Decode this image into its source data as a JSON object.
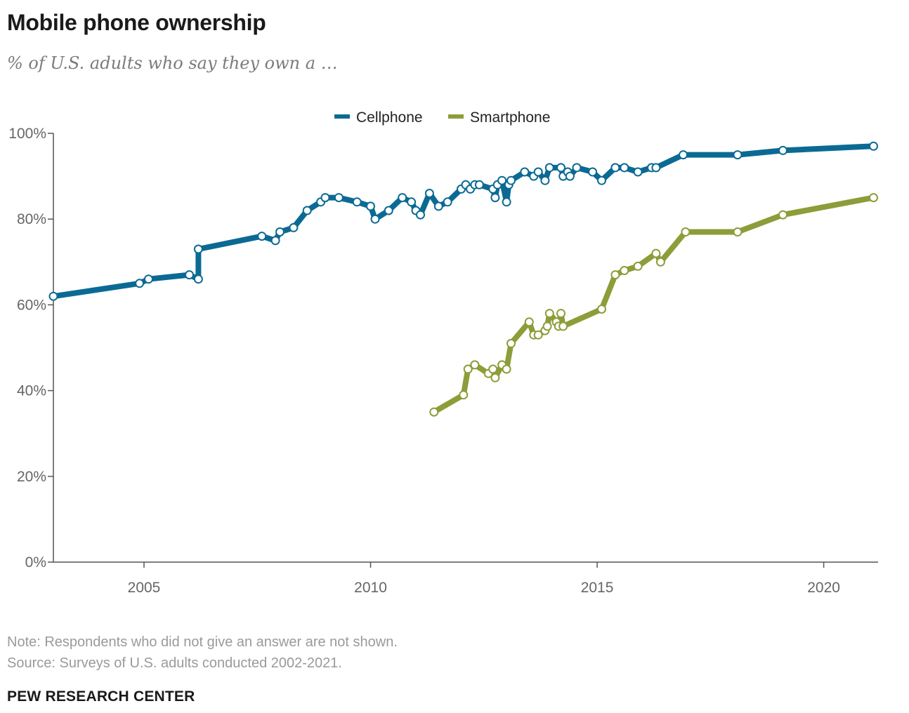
{
  "header": {
    "title": "Mobile phone ownership",
    "subtitle": "% of U.S. adults who say they own a …"
  },
  "footer": {
    "note": "Note: Respondents who did not give an answer are not shown.",
    "source": "Source: Surveys of U.S. adults conducted 2002-2021.",
    "brand": "PEW RESEARCH CENTER"
  },
  "chart_data": {
    "type": "line",
    "xlim": [
      2003.0,
      2021.2
    ],
    "ylim": [
      0,
      100
    ],
    "x_ticks": [
      2005,
      2010,
      2015,
      2020
    ],
    "x_tick_labels": [
      "2005",
      "2010",
      "2015",
      "2020"
    ],
    "y_ticks": [
      0,
      20,
      40,
      60,
      80,
      100
    ],
    "y_tick_labels": [
      "0%",
      "20%",
      "40%",
      "60%",
      "80%",
      "100%"
    ],
    "grid": false,
    "legend_position": "top-center",
    "series": [
      {
        "name": "Cellphone",
        "color": "#0b6a94",
        "points": [
          [
            2003.0,
            62
          ],
          [
            2004.9,
            65
          ],
          [
            2005.1,
            66
          ],
          [
            2006.0,
            67
          ],
          [
            2006.2,
            66
          ],
          [
            2006.2,
            73
          ],
          [
            2007.6,
            76
          ],
          [
            2007.9,
            75
          ],
          [
            2008.0,
            77
          ],
          [
            2008.3,
            78
          ],
          [
            2008.6,
            82
          ],
          [
            2008.9,
            84
          ],
          [
            2009.0,
            85
          ],
          [
            2009.3,
            85
          ],
          [
            2009.7,
            84
          ],
          [
            2010.0,
            83
          ],
          [
            2010.1,
            80
          ],
          [
            2010.4,
            82
          ],
          [
            2010.7,
            85
          ],
          [
            2010.9,
            84
          ],
          [
            2011.0,
            82
          ],
          [
            2011.1,
            81
          ],
          [
            2011.3,
            86
          ],
          [
            2011.5,
            83
          ],
          [
            2011.7,
            84
          ],
          [
            2012.0,
            87
          ],
          [
            2012.1,
            88
          ],
          [
            2012.2,
            87
          ],
          [
            2012.3,
            88
          ],
          [
            2012.4,
            88
          ],
          [
            2012.7,
            87
          ],
          [
            2012.75,
            85
          ],
          [
            2012.8,
            88
          ],
          [
            2012.9,
            89
          ],
          [
            2013.0,
            84
          ],
          [
            2013.05,
            88
          ],
          [
            2013.1,
            89
          ],
          [
            2013.4,
            91
          ],
          [
            2013.6,
            90
          ],
          [
            2013.7,
            91
          ],
          [
            2013.85,
            89
          ],
          [
            2013.95,
            92
          ],
          [
            2014.2,
            92
          ],
          [
            2014.25,
            90
          ],
          [
            2014.35,
            91
          ],
          [
            2014.4,
            90
          ],
          [
            2014.55,
            92
          ],
          [
            2014.9,
            91
          ],
          [
            2015.1,
            89
          ],
          [
            2015.4,
            92
          ],
          [
            2015.6,
            92
          ],
          [
            2015.9,
            91
          ],
          [
            2016.2,
            92
          ],
          [
            2016.3,
            92
          ],
          [
            2016.9,
            95
          ],
          [
            2018.1,
            95
          ],
          [
            2019.1,
            96
          ],
          [
            2021.1,
            97
          ]
        ]
      },
      {
        "name": "Smartphone",
        "color": "#8c9d39",
        "points": [
          [
            2011.4,
            35
          ],
          [
            2012.05,
            39
          ],
          [
            2012.15,
            45
          ],
          [
            2012.3,
            46
          ],
          [
            2012.6,
            44
          ],
          [
            2012.7,
            45
          ],
          [
            2012.75,
            43
          ],
          [
            2012.9,
            46
          ],
          [
            2013.0,
            45
          ],
          [
            2013.1,
            51
          ],
          [
            2013.5,
            56
          ],
          [
            2013.6,
            53
          ],
          [
            2013.7,
            53
          ],
          [
            2013.85,
            54
          ],
          [
            2013.9,
            55
          ],
          [
            2013.95,
            58
          ],
          [
            2014.1,
            56
          ],
          [
            2014.15,
            55
          ],
          [
            2014.2,
            58
          ],
          [
            2014.25,
            55
          ],
          [
            2015.1,
            59
          ],
          [
            2015.4,
            67
          ],
          [
            2015.6,
            68
          ],
          [
            2015.9,
            69
          ],
          [
            2016.3,
            72
          ],
          [
            2016.4,
            70
          ],
          [
            2016.95,
            77
          ],
          [
            2018.1,
            77
          ],
          [
            2019.1,
            81
          ],
          [
            2021.1,
            85
          ]
        ]
      }
    ]
  }
}
